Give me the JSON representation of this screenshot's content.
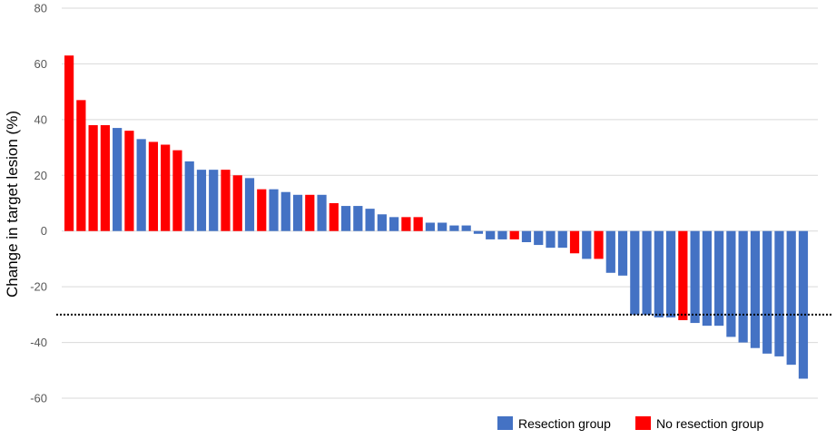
{
  "chart_data": {
    "type": "bar",
    "title": "",
    "xlabel": "",
    "ylabel": "Change in target lesion (%)",
    "ylim": [
      -60,
      80
    ],
    "yticks": [
      80,
      60,
      40,
      20,
      0,
      -20,
      -40,
      -60
    ],
    "grid": true,
    "reference_line": {
      "y": -30,
      "style": "dotted",
      "color": "#000000"
    },
    "legend_position": "bottom-right",
    "series": [
      {
        "name": "Resection group",
        "color": "#4472C4"
      },
      {
        "name": "No resection group",
        "color": "#FF0000"
      }
    ],
    "bars": [
      {
        "value": 63,
        "group": "No resection group"
      },
      {
        "value": 47,
        "group": "No resection group"
      },
      {
        "value": 38,
        "group": "No resection group"
      },
      {
        "value": 38,
        "group": "No resection group"
      },
      {
        "value": 37,
        "group": "Resection group"
      },
      {
        "value": 36,
        "group": "No resection group"
      },
      {
        "value": 33,
        "group": "Resection group"
      },
      {
        "value": 32,
        "group": "No resection group"
      },
      {
        "value": 31,
        "group": "No resection group"
      },
      {
        "value": 29,
        "group": "No resection group"
      },
      {
        "value": 25,
        "group": "Resection group"
      },
      {
        "value": 22,
        "group": "Resection group"
      },
      {
        "value": 22,
        "group": "Resection group"
      },
      {
        "value": 22,
        "group": "No resection group"
      },
      {
        "value": 20,
        "group": "No resection group"
      },
      {
        "value": 19,
        "group": "Resection group"
      },
      {
        "value": 15,
        "group": "No resection group"
      },
      {
        "value": 15,
        "group": "Resection group"
      },
      {
        "value": 14,
        "group": "Resection group"
      },
      {
        "value": 13,
        "group": "Resection group"
      },
      {
        "value": 13,
        "group": "No resection group"
      },
      {
        "value": 13,
        "group": "Resection group"
      },
      {
        "value": 10,
        "group": "No resection group"
      },
      {
        "value": 9,
        "group": "Resection group"
      },
      {
        "value": 9,
        "group": "Resection group"
      },
      {
        "value": 8,
        "group": "Resection group"
      },
      {
        "value": 6,
        "group": "Resection group"
      },
      {
        "value": 5,
        "group": "Resection group"
      },
      {
        "value": 5,
        "group": "No resection group"
      },
      {
        "value": 5,
        "group": "No resection group"
      },
      {
        "value": 3,
        "group": "Resection group"
      },
      {
        "value": 3,
        "group": "Resection group"
      },
      {
        "value": 2,
        "group": "Resection group"
      },
      {
        "value": 2,
        "group": "Resection group"
      },
      {
        "value": -1,
        "group": "Resection group"
      },
      {
        "value": -3,
        "group": "Resection group"
      },
      {
        "value": -3,
        "group": "Resection group"
      },
      {
        "value": -3,
        "group": "No resection group"
      },
      {
        "value": -4,
        "group": "Resection group"
      },
      {
        "value": -5,
        "group": "Resection group"
      },
      {
        "value": -6,
        "group": "Resection group"
      },
      {
        "value": -6,
        "group": "Resection group"
      },
      {
        "value": -8,
        "group": "No resection group"
      },
      {
        "value": -10,
        "group": "Resection group"
      },
      {
        "value": -10,
        "group": "No resection group"
      },
      {
        "value": -15,
        "group": "Resection group"
      },
      {
        "value": -16,
        "group": "Resection group"
      },
      {
        "value": -30,
        "group": "Resection group"
      },
      {
        "value": -30,
        "group": "Resection group"
      },
      {
        "value": -31,
        "group": "Resection group"
      },
      {
        "value": -31,
        "group": "Resection group"
      },
      {
        "value": -32,
        "group": "No resection group"
      },
      {
        "value": -33,
        "group": "Resection group"
      },
      {
        "value": -34,
        "group": "Resection group"
      },
      {
        "value": -34,
        "group": "Resection group"
      },
      {
        "value": -38,
        "group": "Resection group"
      },
      {
        "value": -40,
        "group": "Resection group"
      },
      {
        "value": -42,
        "group": "Resection group"
      },
      {
        "value": -44,
        "group": "Resection group"
      },
      {
        "value": -45,
        "group": "Resection group"
      },
      {
        "value": -48,
        "group": "Resection group"
      },
      {
        "value": -53,
        "group": "Resection group"
      }
    ]
  }
}
